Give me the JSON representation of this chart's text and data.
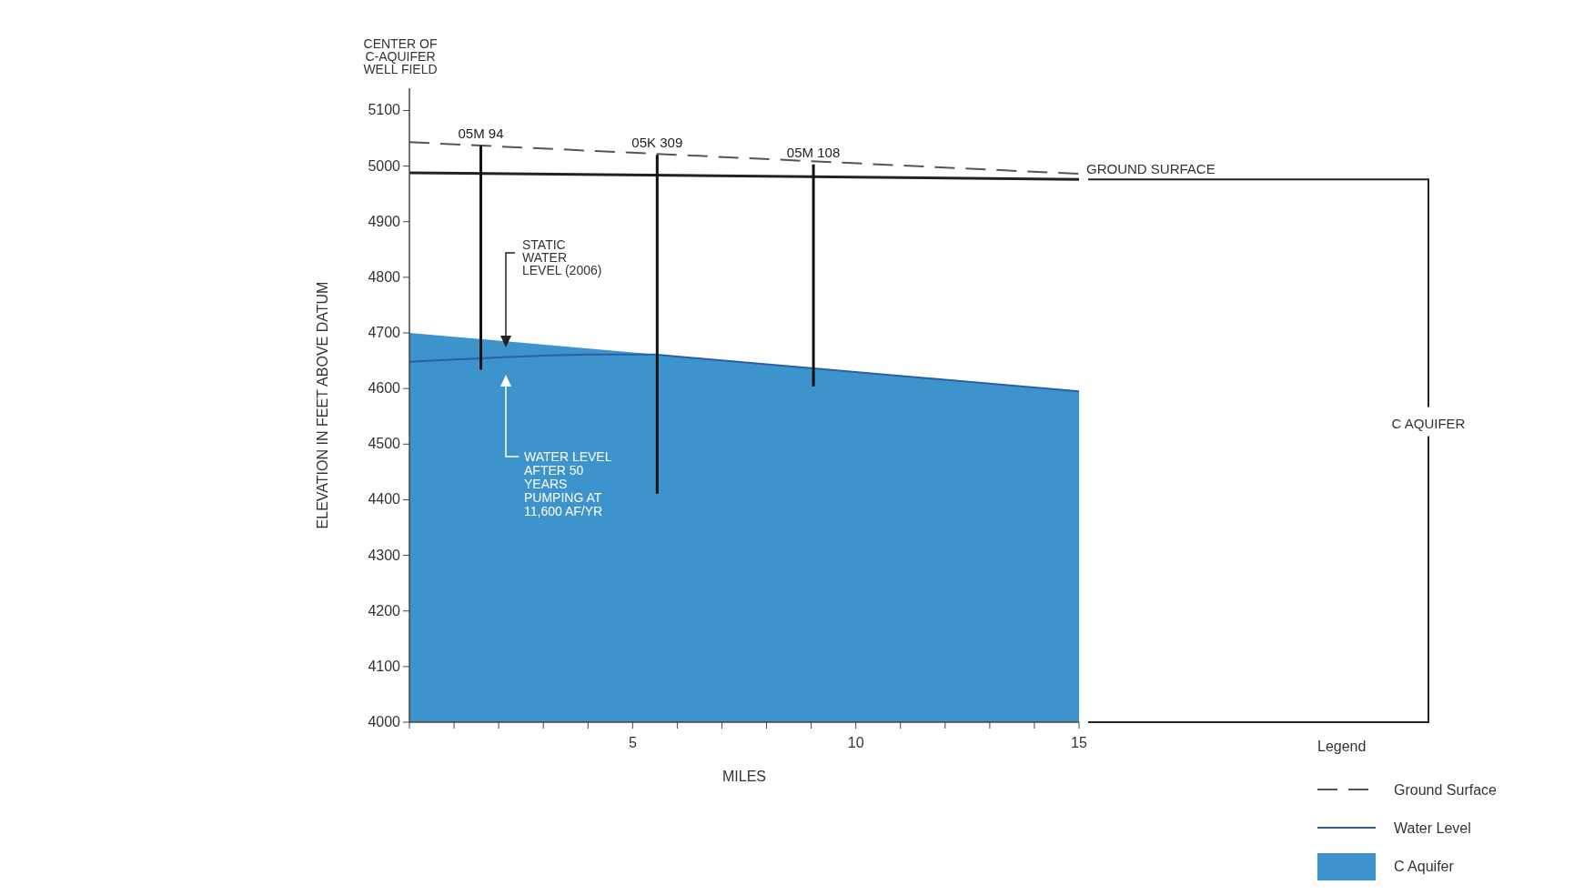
{
  "chart_data": {
    "type": "line",
    "xlabel": "MILES",
    "ylabel": "ELEVATION IN FEET ABOVE DATUM",
    "legend_title": "Legend",
    "legend": "bottom right",
    "grid": false,
    "xlim": [
      0,
      15
    ],
    "xticks": [
      {
        "value": 0,
        "label": null
      },
      {
        "value": 1,
        "label": null
      },
      {
        "value": 2,
        "label": null
      },
      {
        "value": 3,
        "label": null
      },
      {
        "value": 4,
        "label": null
      },
      5,
      {
        "value": 6,
        "label": null
      },
      {
        "value": 7,
        "label": null
      },
      {
        "value": 8,
        "label": null
      },
      {
        "value": 9,
        "label": null
      },
      10,
      {
        "value": 11,
        "label": null
      },
      {
        "value": 12,
        "label": null
      },
      {
        "value": 13,
        "label": null
      },
      {
        "value": 14,
        "label": null
      },
      15
    ],
    "ylim": [
      4000,
      5140
    ],
    "yticks": [
      4000,
      4100,
      4200,
      4300,
      4400,
      4500,
      4600,
      4700,
      4800,
      4900,
      5000,
      5100
    ],
    "series": [
      {
        "name": "Ground Surface",
        "line_style": "dashed",
        "color": "#555555",
        "x": [
          0,
          15
        ],
        "values": [
          5043,
          4986
        ]
      },
      {
        "name": "Water Level",
        "color": "#2d5fa6",
        "x": [
          0,
          1,
          2,
          3,
          4,
          5,
          5.5,
          15
        ],
        "values": [
          4648,
          4652,
          4656,
          4659,
          4661,
          4661,
          4661,
          4595
        ]
      },
      {
        "name": "C Aquifer",
        "type": "area",
        "color": "#3d93cb",
        "x": [
          0,
          15
        ],
        "values": [
          4700,
          4595
        ]
      },
      {
        "color": "#222222",
        "x": [
          0,
          15
        ],
        "values": [
          4988,
          4976
        ]
      },
      {
        "color": "#111111",
        "x": [
          1.6,
          1.6
        ],
        "values": [
          5037,
          4634
        ]
      },
      {
        "color": "#111111",
        "x": [
          5.55,
          5.55
        ],
        "values": [
          5020,
          4411
        ]
      },
      {
        "color": "#111111",
        "x": [
          9.05,
          9.05
        ],
        "values": [
          5003,
          4604
        ]
      }
    ],
    "annotations": [
      "CENTER OF\nC-AQUIFER\nWELL FIELD",
      "GROUND SURFACE",
      "C AQUIFER",
      {
        "text": "05M 94",
        "x": 1.6,
        "y": 5037
      },
      {
        "text": "05K 309",
        "x": 5.55,
        "y": 5020
      },
      {
        "text": "05M 108",
        "x": 9.05,
        "y": 5003
      },
      "STATIC\nWATER\nLEVEL (2006)",
      "WATER LEVEL\nAFTER 50\nYEARS\nPUMPING AT\n11,600 AF/YR"
    ]
  }
}
